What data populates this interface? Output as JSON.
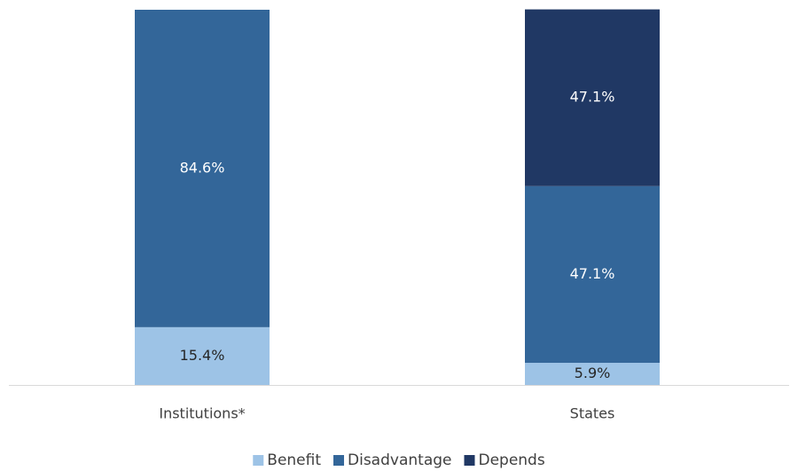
{
  "chart_data": {
    "type": "stacked_bar",
    "categories": [
      "Institutions*",
      "States"
    ],
    "series": [
      {
        "name": "Benefit",
        "color": "#9dc3e6",
        "values": [
          15.4,
          5.9
        ],
        "value_labels": [
          "15.4%",
          "5.9%"
        ]
      },
      {
        "name": "Disadvantage",
        "color": "#336699",
        "values": [
          84.6,
          47.1
        ],
        "value_labels": [
          "84.6%",
          "47.1%"
        ]
      },
      {
        "name": "Depends",
        "color": "#203864",
        "values": [
          null,
          47.1
        ],
        "value_labels": [
          null,
          "47.1%"
        ]
      }
    ],
    "ylim": [
      0,
      100
    ],
    "legend": "bottom"
  }
}
